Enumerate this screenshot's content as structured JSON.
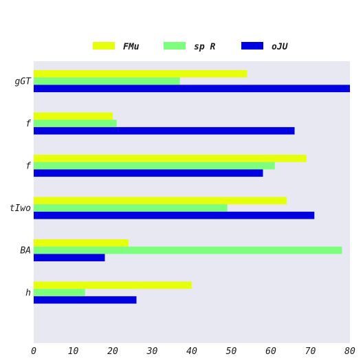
{
  "chart_data": {
    "type": "bar",
    "orientation": "horizontal",
    "categories": [
      "gGT",
      "f",
      "f",
      "tIwo",
      "BA",
      "h"
    ],
    "series": [
      {
        "name": "FMu",
        "color": "#e6ff0a",
        "values": [
          54,
          20,
          69,
          64,
          24,
          40
        ]
      },
      {
        "name": "sp R",
        "color": "#7dff7d",
        "values": [
          37,
          21,
          61,
          49,
          78,
          13
        ]
      },
      {
        "name": "oJU",
        "color": "#0000e0",
        "values": [
          80,
          66,
          58,
          71,
          18,
          26
        ]
      }
    ],
    "xlim": [
      0,
      80
    ],
    "x_ticks": [
      0,
      10,
      20,
      30,
      40,
      50,
      60,
      70,
      80
    ],
    "grid": false,
    "plot_background": "#e8e8f2",
    "legend_position": "top-center"
  }
}
